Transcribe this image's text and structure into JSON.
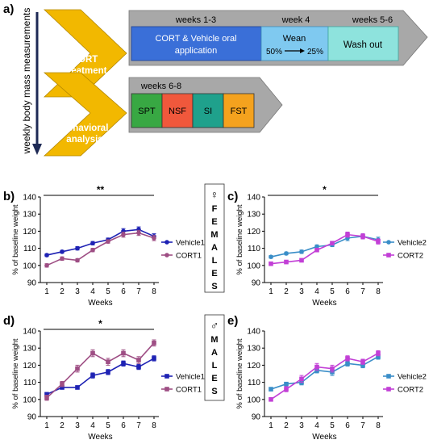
{
  "panel_labels": {
    "a": "a)",
    "b": "b)",
    "c": "c)",
    "d": "d)",
    "e": "e)"
  },
  "schematic": {
    "side_label": "weekly body mass measurements",
    "step1": {
      "label_line1": "CORT",
      "label_line2": "Treatment",
      "color": "#F2B800"
    },
    "step2": {
      "label_line1": "Behavioral",
      "label_line2": "analysis",
      "color": "#F2B800"
    },
    "timeline1": {
      "headers": [
        "weeks 1-3",
        "week 4",
        "weeks 5-6"
      ],
      "box1_line1": "CORT & Vehicle oral",
      "box1_line2": "application",
      "box1_color": "#3A6FD8",
      "box2_line1": "Wean",
      "box2_line2_a": "50%",
      "box2_line2_b": "25%",
      "box2_color": "#7FC9F0",
      "box3": "Wash out",
      "box3_color": "#8EE3DD"
    },
    "timeline2": {
      "header": "weeks 6-8",
      "tests": [
        {
          "label": "SPT",
          "color": "#38A843"
        },
        {
          "label": "NSF",
          "color": "#F0583C"
        },
        {
          "label": "SI",
          "color": "#1FA18C"
        },
        {
          "label": "FST",
          "color": "#F4A21E"
        }
      ]
    }
  },
  "sex_labels": {
    "females": {
      "symbol": "♀",
      "letters": [
        "F",
        "E",
        "M",
        "A",
        "L",
        "E",
        "S"
      ]
    },
    "males": {
      "symbol": "♂",
      "letters": [
        "M",
        "A",
        "L",
        "E",
        "S"
      ]
    }
  },
  "chart_data": [
    {
      "id": "b",
      "type": "line",
      "xlabel": "Weeks",
      "ylabel": "% of baseline weight",
      "ylim": [
        90,
        140
      ],
      "yticks": [
        90,
        100,
        110,
        120,
        130,
        140
      ],
      "x": [
        1,
        2,
        3,
        4,
        5,
        6,
        7,
        8
      ],
      "significance": "**",
      "series": [
        {
          "name": "Vehicle1",
          "color": "#1E22B4",
          "marker": "circle",
          "values": [
            106,
            108,
            110,
            113,
            115,
            120,
            121,
            117
          ],
          "errors": [
            0.8,
            0.8,
            1,
            1,
            1,
            1.5,
            1.5,
            1.5
          ]
        },
        {
          "name": "CORT1",
          "color": "#9E4E84",
          "marker": "circle",
          "values": [
            100,
            104,
            103,
            109,
            114,
            118,
            119,
            116
          ],
          "errors": [
            1,
            1,
            1,
            1,
            1,
            1.5,
            1.5,
            1.5
          ]
        }
      ]
    },
    {
      "id": "c",
      "type": "line",
      "xlabel": "Weeks",
      "ylabel": "% of baseline weight",
      "ylim": [
        90,
        140
      ],
      "yticks": [
        90,
        100,
        110,
        120,
        130,
        140
      ],
      "x": [
        1,
        2,
        3,
        4,
        5,
        6,
        7,
        8
      ],
      "significance": "*",
      "series": [
        {
          "name": "Vehicle2",
          "color": "#3A8EC8",
          "marker": "circle",
          "values": [
            105,
            107,
            108,
            111,
            112,
            116,
            117,
            115
          ],
          "errors": [
            0.8,
            0.8,
            1,
            1,
            1,
            1.5,
            1.5,
            1.5
          ]
        },
        {
          "name": "CORT2",
          "color": "#C23FD6",
          "marker": "square",
          "values": [
            101,
            102,
            103,
            109,
            113,
            118,
            117,
            114
          ],
          "errors": [
            1,
            1,
            1,
            1,
            1,
            1.5,
            1.5,
            1.5
          ]
        }
      ]
    },
    {
      "id": "d",
      "type": "line",
      "xlabel": "Weeks",
      "ylabel": "% of baseline weight",
      "ylim": [
        90,
        140
      ],
      "yticks": [
        90,
        100,
        110,
        120,
        130,
        140
      ],
      "x": [
        1,
        2,
        3,
        4,
        5,
        6,
        7,
        8
      ],
      "significance": "*",
      "series": [
        {
          "name": "Vehicle1",
          "color": "#1E22B4",
          "marker": "square",
          "values": [
            103,
            107,
            107,
            114,
            116,
            121,
            119,
            124
          ],
          "errors": [
            1,
            1,
            1,
            1.5,
            1.5,
            1.5,
            1.5,
            1.5
          ]
        },
        {
          "name": "CORT1",
          "color": "#9E4E84",
          "marker": "square",
          "values": [
            101,
            109,
            118,
            127,
            122,
            127,
            123,
            133
          ],
          "errors": [
            1.5,
            1.5,
            2,
            2,
            2,
            2,
            2,
            1.8
          ]
        }
      ]
    },
    {
      "id": "e",
      "type": "line",
      "xlabel": "Weeks",
      "ylabel": "% of baseline weight",
      "ylim": [
        90,
        140
      ],
      "yticks": [
        90,
        100,
        110,
        120,
        130,
        140
      ],
      "x": [
        1,
        2,
        3,
        4,
        5,
        6,
        7,
        8
      ],
      "significance": "",
      "series": [
        {
          "name": "Vehicle2",
          "color": "#3A8EC8",
          "marker": "square",
          "values": [
            106,
            109,
            110,
            117,
            116,
            121,
            120,
            125
          ],
          "errors": [
            1,
            1,
            1.5,
            1.5,
            2,
            1.5,
            1.5,
            1.5
          ]
        },
        {
          "name": "CORT2",
          "color": "#C23FD6",
          "marker": "square",
          "values": [
            100,
            106,
            112,
            119,
            118,
            124,
            122,
            127
          ],
          "errors": [
            1,
            1.5,
            2,
            2,
            2,
            1.5,
            1.5,
            1.5
          ]
        }
      ]
    }
  ]
}
